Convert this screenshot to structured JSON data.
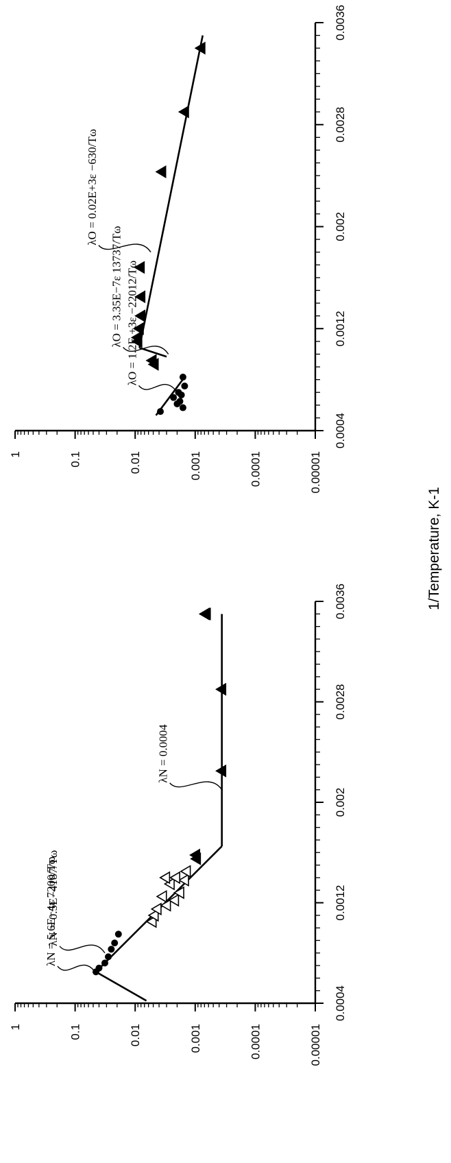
{
  "chart_data": [
    {
      "type": "scatter",
      "title": "",
      "xlabel": "1/Temperature, K-1",
      "ylabel": "",
      "xscale": "linear",
      "yscale": "log",
      "xlim": [
        0.0004,
        0.0036
      ],
      "ylim": [
        1e-05,
        1
      ],
      "xticks": [
        "0.0004",
        "0.0012",
        "0.002",
        "0.0028",
        "0.0036"
      ],
      "yticks": [
        "1",
        "0.1",
        "0.01",
        "0.001",
        "0.0001",
        "0.00001"
      ],
      "grid": false,
      "series": [
        {
          "marker": "filled-circle",
          "points": [
            [
              0.00065,
              0.045
            ],
            [
              0.00068,
              0.04
            ],
            [
              0.00072,
              0.032
            ],
            [
              0.00077,
              0.028
            ],
            [
              0.00083,
              0.025
            ],
            [
              0.00088,
              0.022
            ],
            [
              0.00095,
              0.019
            ]
          ]
        },
        {
          "marker": "open-triangle",
          "points": [
            [
              0.00105,
              0.0052
            ],
            [
              0.0011,
              0.0048
            ],
            [
              0.00115,
              0.0043
            ],
            [
              0.00118,
              0.003
            ],
            [
              0.00122,
              0.0022
            ],
            [
              0.00125,
              0.0035
            ],
            [
              0.00128,
              0.0018
            ],
            [
              0.00135,
              0.0026
            ],
            [
              0.00138,
              0.0015
            ],
            [
              0.0014,
              0.0031
            ],
            [
              0.0014,
              0.0021
            ],
            [
              0.00145,
              0.0014
            ]
          ]
        },
        {
          "marker": "filled-triangle",
          "points": [
            [
              0.00155,
              0.00095
            ],
            [
              0.00158,
              0.00098
            ],
            [
              0.00225,
              0.00036
            ],
            [
              0.0029,
              0.00036
            ],
            [
              0.0035,
              0.00065
            ],
            [
              0.0035,
              0.00068
            ]
          ]
        }
      ],
      "fits": [
        {
          "points": [
            [
              0.00042,
              0.0065
            ],
            [
              0.00065,
              0.045
            ]
          ]
        },
        {
          "points": [
            [
              0.00065,
              0.045
            ],
            [
              0.00165,
              0.00036
            ]
          ]
        },
        {
          "points": [
            [
              0.00165,
              0.00036
            ],
            [
              0.0035,
              0.00036
            ]
          ]
        }
      ],
      "annotations": [
        {
          "text": "λN = 5.6E−4ε 7200/Tω",
          "at": [
            0.00064,
            0.045
          ]
        },
        {
          "text": "λN = 0.5E−4187/Tω",
          "at": [
            0.0008,
            0.032
          ]
        },
        {
          "text": "λN = 0.0004",
          "at": [
            0.0021,
            0.00036
          ]
        }
      ]
    },
    {
      "type": "scatter",
      "title": "",
      "xlabel": "1/Temperature, K-1",
      "ylabel": "",
      "xscale": "linear",
      "yscale": "log",
      "xlim": [
        0.0004,
        0.0036
      ],
      "ylim": [
        1e-05,
        1
      ],
      "xticks": [
        "0.0004",
        "0.0012",
        "0.002",
        "0.0028",
        "0.0036"
      ],
      "yticks": [
        "1",
        "0.1",
        "0.01",
        "0.001",
        "0.0001",
        "0.00001"
      ],
      "grid": false,
      "series": [
        {
          "marker": "filled-circle",
          "points": [
            [
              0.00055,
              0.0038
            ],
            [
              0.00058,
              0.0016
            ],
            [
              0.00061,
              0.002
            ],
            [
              0.00063,
              0.0018
            ],
            [
              0.00066,
              0.0023
            ],
            [
              0.00068,
              0.0017
            ],
            [
              0.0007,
              0.0019
            ],
            [
              0.00075,
              0.0015
            ],
            [
              0.00082,
              0.0016
            ]
          ]
        },
        {
          "marker": "filled-triangle",
          "points": [
            [
              0.00092,
              0.0048
            ],
            [
              0.00095,
              0.0052
            ],
            [
              0.0011,
              0.009
            ],
            [
              0.00113,
              0.0092
            ],
            [
              0.0012,
              0.0085
            ],
            [
              0.0013,
              0.008
            ],
            [
              0.00145,
              0.008
            ],
            [
              0.00168,
              0.0082
            ],
            [
              0.00243,
              0.0036
            ],
            [
              0.0029,
              0.0015
            ],
            [
              0.0034,
              0.0008
            ]
          ]
        }
      ],
      "fits": [
        {
          "points": [
            [
              0.00052,
              0.0045
            ],
            [
              0.00082,
              0.0015
            ]
          ]
        },
        {
          "points": [
            [
              0.00105,
              0.0085
            ],
            [
              0.00098,
              0.003
            ]
          ]
        },
        {
          "points": [
            [
              0.00105,
              0.0085
            ],
            [
              0.0035,
              0.00075
            ]
          ]
        }
      ],
      "annotations": [
        {
          "text": "λO = 1.2E +3ε −22012/Tω",
          "at": [
            0.0007,
            0.002
          ]
        },
        {
          "text": "λO = 3.35E−7ε 13737/Tω",
          "at": [
            0.001,
            0.0028
          ]
        },
        {
          "text": "λO = 0.02E+3ε −630/Tω",
          "at": [
            0.0018,
            0.0055
          ]
        }
      ]
    }
  ]
}
